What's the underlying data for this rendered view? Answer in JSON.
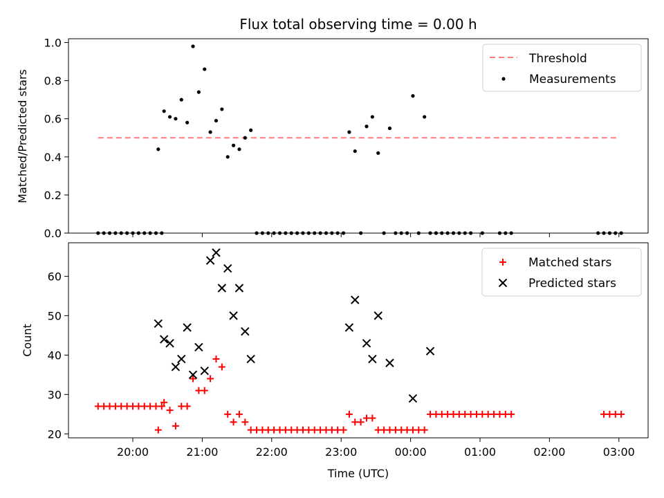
{
  "chart_data": [
    {
      "type": "scatter",
      "title": "Flux total observing time = 0.00 h",
      "xlabel": "",
      "ylabel": "Matched/Predicted stars",
      "ylim": [
        0,
        1.02
      ],
      "yticks": [
        "0.0",
        "0.2",
        "0.4",
        "0.6",
        "0.8",
        "1.0"
      ],
      "legend_position": "top-right",
      "threshold": {
        "name": "Threshold",
        "value": 0.5,
        "x_range": [
          "19:30",
          "03:00"
        ],
        "color": "#ff7a7a",
        "style": "dashed"
      },
      "series": [
        {
          "name": "Measurements",
          "color": "#000000",
          "x": [
            "19:30",
            "19:35",
            "19:40",
            "19:45",
            "19:50",
            "19:55",
            "20:00",
            "20:05",
            "20:10",
            "20:15",
            "20:20",
            "20:25",
            "20:22",
            "20:27",
            "20:32",
            "20:37",
            "20:42",
            "20:47",
            "20:52",
            "20:57",
            "21:02",
            "21:07",
            "21:12",
            "21:17",
            "21:22",
            "21:27",
            "21:32",
            "21:37",
            "21:42",
            "21:47",
            "21:52",
            "21:57",
            "22:02",
            "22:07",
            "22:12",
            "22:17",
            "22:22",
            "22:27",
            "22:32",
            "22:37",
            "22:42",
            "22:47",
            "22:52",
            "22:57",
            "23:02",
            "23:07",
            "23:12",
            "23:17",
            "23:22",
            "23:27",
            "23:32",
            "23:37",
            "23:42",
            "23:47",
            "23:52",
            "23:57",
            "00:02",
            "00:07",
            "00:12",
            "00:17",
            "00:22",
            "00:22",
            "00:27",
            "00:32",
            "00:37",
            "00:42",
            "00:47",
            "00:52",
            "01:02",
            "01:17",
            "01:22",
            "01:27",
            "02:42",
            "02:47",
            "02:52",
            "02:57",
            "03:02"
          ],
          "y": [
            0,
            0,
            0,
            0,
            0,
            0,
            0,
            0,
            0,
            0,
            0,
            0,
            0.44,
            0.64,
            0.61,
            0.6,
            0.7,
            0.58,
            0.98,
            0.74,
            0.86,
            0.53,
            0.59,
            0.65,
            0.4,
            0.46,
            0.44,
            0.5,
            0.54,
            0,
            0,
            0,
            0,
            0,
            0,
            0,
            0,
            0,
            0,
            0,
            0,
            0,
            0,
            0,
            0,
            0.53,
            0.43,
            0,
            0.56,
            0.61,
            0.42,
            0,
            0.55,
            0,
            0,
            0,
            0.72,
            0,
            0.61,
            0,
            0,
            0,
            0,
            0,
            0,
            0,
            0,
            0,
            0,
            0,
            0,
            0,
            0,
            0,
            0,
            0,
            0
          ]
        }
      ]
    },
    {
      "type": "scatter",
      "title": "",
      "xlabel": "Time (UTC)",
      "ylabel": "Count",
      "ylim": [
        19,
        68.5
      ],
      "yticks": [
        "20",
        "30",
        "40",
        "50",
        "60"
      ],
      "xticks": [
        "20:00",
        "21:00",
        "22:00",
        "23:00",
        "00:00",
        "01:00",
        "02:00",
        "03:00"
      ],
      "legend_position": "top-right",
      "series": [
        {
          "name": "Matched stars",
          "marker": "plus",
          "color": "#ff0000",
          "x": [
            "19:30",
            "19:35",
            "19:40",
            "19:45",
            "19:50",
            "19:55",
            "20:00",
            "20:05",
            "20:10",
            "20:15",
            "20:20",
            "20:25",
            "20:22",
            "20:27",
            "20:32",
            "20:37",
            "20:42",
            "20:47",
            "20:52",
            "20:57",
            "21:02",
            "21:07",
            "21:12",
            "21:17",
            "21:22",
            "21:27",
            "21:32",
            "21:37",
            "21:42",
            "21:47",
            "21:52",
            "21:57",
            "22:02",
            "22:07",
            "22:12",
            "22:17",
            "22:22",
            "22:27",
            "22:32",
            "22:37",
            "22:42",
            "22:47",
            "22:52",
            "22:57",
            "23:02",
            "23:07",
            "23:12",
            "23:17",
            "23:22",
            "23:27",
            "23:32",
            "23:37",
            "23:42",
            "23:47",
            "23:52",
            "23:57",
            "00:02",
            "00:07",
            "00:12",
            "00:17",
            "00:22",
            "00:27",
            "00:32",
            "00:37",
            "00:42",
            "00:47",
            "00:52",
            "00:57",
            "01:02",
            "01:07",
            "01:12",
            "01:17",
            "01:22",
            "01:27",
            "02:47",
            "02:52",
            "02:57",
            "03:02"
          ],
          "y": [
            27,
            27,
            27,
            27,
            27,
            27,
            27,
            27,
            27,
            27,
            27,
            27,
            21,
            28,
            26,
            22,
            27,
            27,
            34,
            31,
            31,
            34,
            39,
            37,
            25,
            23,
            25,
            23,
            21,
            21,
            21,
            21,
            21,
            21,
            21,
            21,
            21,
            21,
            21,
            21,
            21,
            21,
            21,
            21,
            21,
            25,
            23,
            23,
            24,
            24,
            21,
            21,
            21,
            21,
            21,
            21,
            21,
            21,
            21,
            25,
            25,
            25,
            25,
            25,
            25,
            25,
            25,
            25,
            25,
            25,
            25,
            25,
            25,
            25,
            25,
            25,
            25,
            25
          ]
        },
        {
          "name": "Predicted stars",
          "marker": "x",
          "color": "#000000",
          "x": [
            "20:22",
            "20:27",
            "20:32",
            "20:37",
            "20:42",
            "20:47",
            "20:52",
            "20:57",
            "21:02",
            "21:07",
            "21:12",
            "21:17",
            "21:22",
            "21:27",
            "21:32",
            "21:37",
            "21:42",
            "23:07",
            "23:12",
            "23:22",
            "23:27",
            "23:32",
            "23:42",
            "00:02",
            "00:17"
          ],
          "y": [
            48,
            44,
            43,
            37,
            39,
            47,
            35,
            42,
            36,
            64,
            66,
            57,
            62,
            50,
            57,
            46,
            39,
            47,
            54,
            43,
            39,
            50,
            38,
            29,
            41
          ]
        }
      ]
    }
  ]
}
